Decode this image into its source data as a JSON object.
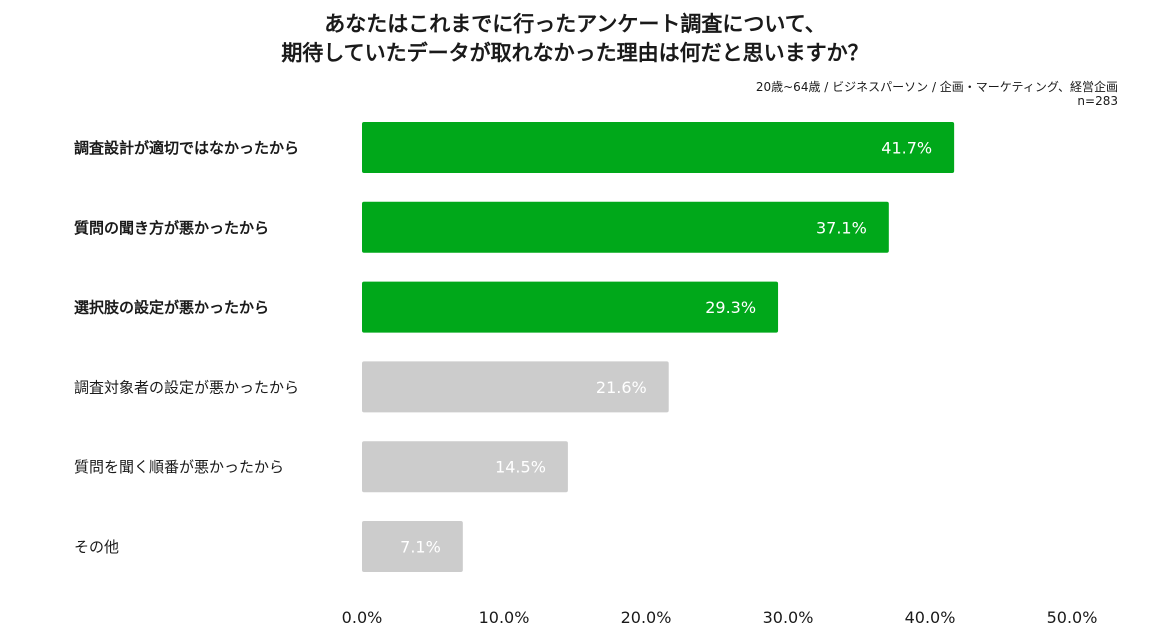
{
  "chart_data": {
    "type": "bar",
    "orientation": "horizontal",
    "title": [
      "あなたはこれまでに行ったアンケート調査について、",
      "期待していたデータが取れなかった理由は何だと思いますか？"
    ],
    "subtitle": "20歳~64歳 / ビジネスパーソン / 企画・マーケティング、経営企画",
    "sample_size": "n=283",
    "categories": [
      "調査設計が適切ではなかったから",
      "質問の聞き方が悪かったから",
      "選択肢の設定が悪かったから",
      "調査対象者の設定が悪かったから",
      "質問を聞く順番が悪かったから",
      "その他"
    ],
    "values": [
      41.7,
      37.1,
      29.3,
      21.6,
      14.5,
      7.1
    ],
    "value_labels": [
      "41.7%",
      "37.1%",
      "29.3%",
      "21.6%",
      "14.5%",
      "7.1%"
    ],
    "highlighted": [
      true,
      true,
      true,
      false,
      false,
      false
    ],
    "xlim": [
      0,
      50
    ],
    "ticks": [
      0,
      10,
      20,
      30,
      40,
      50
    ],
    "tick_labels": [
      "0.0%",
      "10.0%",
      "20.0%",
      "30.0%",
      "40.0%",
      "50.0%"
    ],
    "grid": false,
    "colors": {
      "highlight": "#00a81a",
      "normal": "#cccccc",
      "label_text": "#ffffff"
    }
  }
}
